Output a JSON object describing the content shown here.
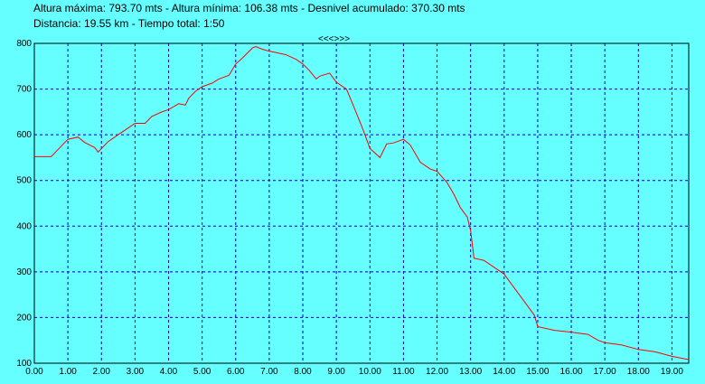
{
  "header": {
    "stats_line1": "Altura máxima: 793.70 mts - Altura mínima: 106.38 mts - Desnivel acumulado: 370.30 mts",
    "stats_line2": "Distancia: 19.55 km - Tiempo total: 1:50",
    "nav_label": "<<<>>>"
  },
  "colors": {
    "background": "#66FFFF",
    "grid": "#0000CC",
    "line": "#FF0000",
    "axis": "#000000"
  },
  "chart_data": {
    "type": "line",
    "xlim": [
      0,
      19.5
    ],
    "ylim": [
      100,
      800
    ],
    "x_ticks": [
      "0.00",
      "1.00",
      "2.00",
      "3.00",
      "4.00",
      "5.00",
      "6.00",
      "7.00",
      "8.00",
      "9.00",
      "10.00",
      "11.00",
      "12.00",
      "13.00",
      "14.00",
      "15.00",
      "16.00",
      "17.00",
      "18.00",
      "19.00"
    ],
    "y_ticks": [
      "800",
      "700",
      "600",
      "500",
      "400",
      "300",
      "200",
      "100"
    ],
    "grid": true,
    "series": [
      {
        "x": [
          0,
          0.5,
          0.8,
          1.0,
          1.3,
          1.5,
          1.8,
          1.9,
          2.0,
          2.2,
          2.5,
          2.8,
          3.0,
          3.3,
          3.5,
          3.8,
          4.0,
          4.3,
          4.5,
          4.6,
          4.8,
          5.0,
          5.3,
          5.5,
          5.8,
          6.0,
          6.2,
          6.5,
          6.6,
          6.8,
          7.0,
          7.2,
          7.5,
          7.8,
          8.0,
          8.2,
          8.4,
          8.5,
          8.8,
          9.0,
          9.3,
          9.5,
          9.8,
          10.0,
          10.3,
          10.5,
          10.7,
          11.0,
          11.2,
          11.5,
          11.8,
          12.0,
          12.3,
          12.5,
          12.7,
          12.9,
          13.0,
          13.1,
          13.4,
          13.7,
          14.0,
          14.3,
          14.6,
          14.9,
          15.0,
          15.5,
          16.0,
          16.3,
          16.5,
          16.8,
          17.0,
          17.5,
          18.0,
          18.5,
          19.0,
          19.5
        ],
        "y": [
          552,
          552,
          575,
          590,
          595,
          583,
          572,
          562,
          570,
          585,
          600,
          615,
          625,
          625,
          640,
          650,
          655,
          668,
          665,
          680,
          695,
          705,
          713,
          722,
          730,
          755,
          768,
          790,
          793,
          787,
          783,
          780,
          775,
          765,
          755,
          740,
          722,
          728,
          735,
          715,
          700,
          665,
          610,
          570,
          550,
          580,
          582,
          590,
          578,
          540,
          525,
          520,
          495,
          470,
          440,
          420,
          390,
          330,
          325,
          310,
          295,
          265,
          235,
          205,
          180,
          172,
          168,
          165,
          163,
          150,
          145,
          140,
          130,
          125,
          115,
          108
        ]
      }
    ]
  }
}
